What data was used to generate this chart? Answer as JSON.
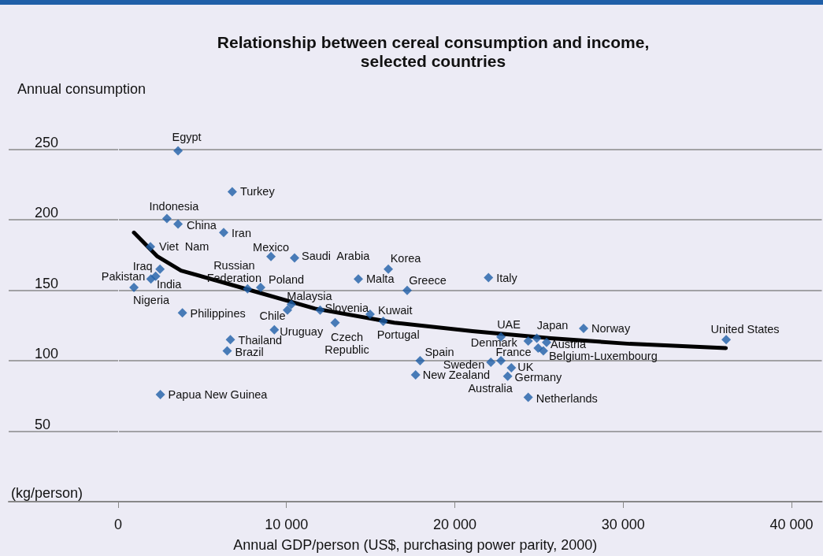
{
  "chart_data": {
    "type": "scatter",
    "title": "Relationship between cereal consumption and income,\nselected countries",
    "xlabel": "Annual GDP/person (US$, purchasing power parity, 2000)",
    "ylabel": "Annual consumption",
    "xlim": [
      -6500,
      41800
    ],
    "xticks": [
      0,
      {
        "value": 10000,
        "label": "10 000"
      },
      {
        "value": 20000,
        "label": "20 000"
      },
      {
        "value": 30000,
        "label": "30 000"
      },
      {
        "value": 40000,
        "label": "40 000"
      }
    ],
    "ylim": [
      0,
      275
    ],
    "yticks": [
      50,
      100,
      150,
      200,
      250
    ],
    "grid": "y",
    "series": [
      {
        "type": "scatter",
        "marker": "diamond",
        "color": "#1f5fa8",
        "x": [
          3560,
          6780,
          2900,
          3560,
          6270,
          1920,
          9080,
          10480,
          16050,
          14270,
          22000,
          17170,
          2490,
          1950,
          2230,
          940,
          3820,
          7690,
          8470,
          10290,
          10060,
          9280,
          6670,
          6480,
          2510,
          12000,
          12890,
          14970,
          15750,
          17940,
          17670,
          22140,
          22740,
          22740,
          23360,
          23140,
          24360,
          24360,
          24870,
          25450,
          25260,
          27650,
          36120,
          24950
        ],
        "values": [
          249,
          220,
          201,
          197,
          191,
          181,
          174,
          173,
          165,
          158,
          159,
          150,
          165,
          158,
          160,
          152,
          134,
          151,
          152,
          140,
          136,
          122,
          115,
          107,
          76,
          136,
          127,
          133,
          128,
          100,
          90,
          99,
          100,
          117,
          95,
          89,
          74,
          114,
          116,
          113,
          107,
          123,
          115,
          109
        ]
      },
      {
        "type": "line",
        "marker": "none",
        "color": "#000000",
        "x": [
          940,
          2340,
          3740,
          7000,
          11700,
          16400,
          21050,
          25700,
          30400,
          36100
        ],
        "values": [
          191,
          174,
          164,
          153,
          137,
          127,
          121,
          116,
          112,
          109
        ]
      }
    ],
    "annotations": [
      {
        "text": "Egypt",
        "x": 3560,
        "y": 249
      },
      {
        "text": "Turkey",
        "x": 6780,
        "y": 220
      },
      {
        "text": "Indonesia",
        "x": 2900,
        "y": 201
      },
      {
        "text": "China",
        "x": 3560,
        "y": 197
      },
      {
        "text": "Iran",
        "x": 6270,
        "y": 191
      },
      {
        "text": "Viet  Nam",
        "x": 1920,
        "y": 181
      },
      {
        "text": "Mexico",
        "x": 9080,
        "y": 174
      },
      {
        "text": "Saudi  Arabia",
        "x": 10480,
        "y": 173
      },
      {
        "text": "Korea",
        "x": 16050,
        "y": 165
      },
      {
        "text": "Malta",
        "x": 14270,
        "y": 158
      },
      {
        "text": "Italy",
        "x": 22000,
        "y": 159
      },
      {
        "text": "Greece",
        "x": 17170,
        "y": 150
      },
      {
        "text": "Iraq",
        "x": 2490,
        "y": 165
      },
      {
        "text": "Pakistan",
        "x": 1950,
        "y": 158
      },
      {
        "text": "India",
        "x": 2230,
        "y": 160
      },
      {
        "text": "Nigeria",
        "x": 940,
        "y": 152
      },
      {
        "text": "Philippines",
        "x": 3820,
        "y": 134
      },
      {
        "text": "Russian\nFederation",
        "x": 7690,
        "y": 151
      },
      {
        "text": "Poland",
        "x": 8470,
        "y": 152
      },
      {
        "text": "Malaysia",
        "x": 10290,
        "y": 140
      },
      {
        "text": "Chile",
        "x": 10060,
        "y": 136
      },
      {
        "text": "Uruguay",
        "x": 9280,
        "y": 122
      },
      {
        "text": "Thailand",
        "x": 6670,
        "y": 115
      },
      {
        "text": "Brazil",
        "x": 6480,
        "y": 107
      },
      {
        "text": "Papua New Guinea",
        "x": 2510,
        "y": 76
      },
      {
        "text": "Slovenia",
        "x": 12000,
        "y": 136
      },
      {
        "text": "Czech\nRepublic",
        "x": 12890,
        "y": 127
      },
      {
        "text": "Kuwait",
        "x": 14970,
        "y": 133
      },
      {
        "text": "Portugal",
        "x": 15750,
        "y": 128
      },
      {
        "text": "Spain",
        "x": 17940,
        "y": 100
      },
      {
        "text": "New Zealand",
        "x": 17670,
        "y": 90
      },
      {
        "text": "Sweden",
        "x": 22140,
        "y": 99
      },
      {
        "text": "France",
        "x": 22740,
        "y": 100
      },
      {
        "text": "UAE",
        "x": 22740,
        "y": 117
      },
      {
        "text": "UK",
        "x": 23360,
        "y": 95
      },
      {
        "text": "Germany",
        "x": 23140,
        "y": 89
      },
      {
        "text": "Australia",
        "x": 23140,
        "y": 89
      },
      {
        "text": "Netherlands",
        "x": 24360,
        "y": 74
      },
      {
        "text": "Denmark",
        "x": 24360,
        "y": 114
      },
      {
        "text": "Japan",
        "x": 24870,
        "y": 116
      },
      {
        "text": "Austria",
        "x": 25450,
        "y": 113
      },
      {
        "text": "Belgium-Luxembourg",
        "x": 25260,
        "y": 107
      },
      {
        "text": "Norway",
        "x": 27650,
        "y": 123
      },
      {
        "text": "United States",
        "x": 36120,
        "y": 115
      },
      "(kg/person)"
    ]
  }
}
